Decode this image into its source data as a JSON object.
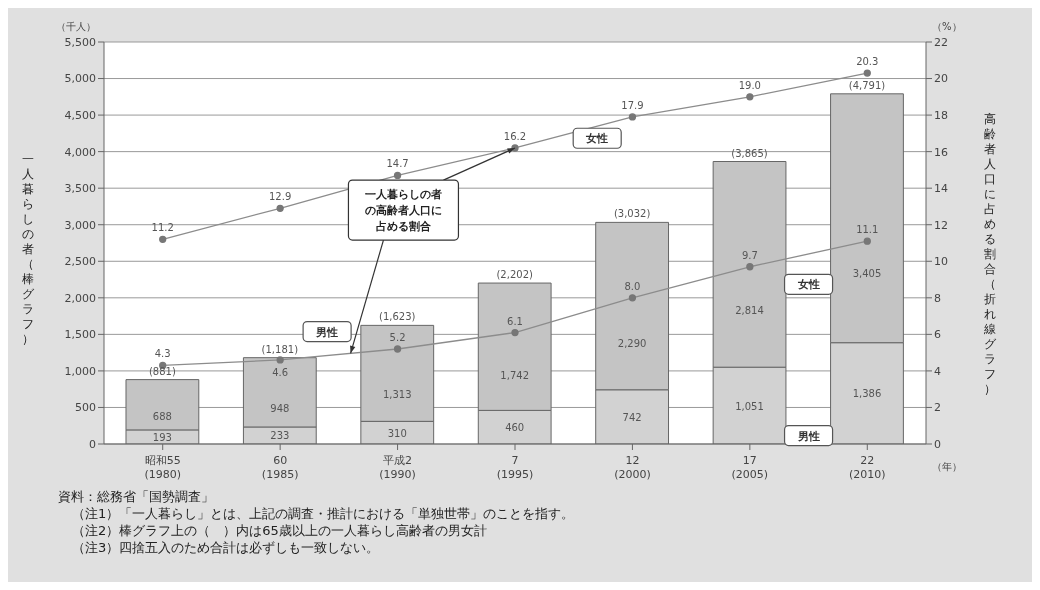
{
  "chart_data": {
    "type": "bar",
    "stacked": true,
    "ylabel": "一人暮らしの者（棒グラフ）",
    "y2label": "高齢者人口に占める割合（折れ線グラフ）",
    "categories": [
      "昭和55\n(1980)",
      "60\n(1985)",
      "平成2\n(1990)",
      "7\n(1995)",
      "12\n(2000)",
      "17\n(2005)",
      "22\n(2010)"
    ],
    "series": [
      {
        "name": "男性",
        "color": "#d2d2d2",
        "values": [
          193,
          233,
          310,
          460,
          742,
          1051,
          1386
        ],
        "value_labels": [
          "193",
          "233",
          "310",
          "460",
          "742",
          "1,051",
          "1,386"
        ]
      },
      {
        "name": "女性",
        "color": "#c4c4c4",
        "values": [
          688,
          948,
          1313,
          1742,
          2290,
          2814,
          3405
        ],
        "value_labels": [
          "688",
          "948",
          "1,313",
          "1,742",
          "2,290",
          "2,814",
          "3,405"
        ]
      },
      {
        "name": "男性",
        "type": "line",
        "axis": "y2",
        "color": "#8c8c8c",
        "values": [
          4.3,
          4.6,
          5.2,
          6.1,
          8.0,
          9.7,
          11.1
        ],
        "value_labels": [
          "4.3",
          "4.6",
          "5.2",
          "6.1",
          "8.0",
          "9.7",
          "11.1"
        ]
      },
      {
        "name": "女性",
        "type": "line",
        "axis": "y2",
        "color": "#8c8c8c",
        "values": [
          11.2,
          12.9,
          14.7,
          16.2,
          17.9,
          19.0,
          20.3
        ],
        "value_labels": [
          "11.2",
          "12.9",
          "14.7",
          "16.2",
          "17.9",
          "19.0",
          "20.3"
        ]
      }
    ],
    "totals": [
      "(881)",
      "(1,181)",
      "(1,623)",
      "(2,202)",
      "(3,032)",
      "(3,865)",
      "(4,791)"
    ],
    "ylim": [
      0,
      5500
    ],
    "yticks": [
      0,
      500,
      {
        "value": 1000,
        "label": "1,000"
      },
      {
        "value": 1500,
        "label": "1,500"
      },
      {
        "value": 2000,
        "label": "2,000"
      },
      {
        "value": 2500,
        "label": "2,500"
      },
      {
        "value": 3000,
        "label": "3,000"
      },
      {
        "value": 3500,
        "label": "3,500"
      },
      {
        "value": 4000,
        "label": "4,000"
      },
      {
        "value": 4500,
        "label": "4,500"
      },
      {
        "value": 5000,
        "label": "5,000"
      },
      {
        "value": 5500,
        "label": "5,500"
      }
    ],
    "y2lim": [
      0,
      22
    ],
    "y2ticks": [
      0,
      2,
      4,
      6,
      8,
      10,
      12,
      14,
      16,
      18,
      20,
      22
    ],
    "grid": "y",
    "legend": false,
    "marker": "circle",
    "annotations": [
      "（千人）",
      "（%）",
      "（年）",
      {
        "text": "一人暮らしの者の高齢者人口に占める割合",
        "x": "7\n(1995)",
        "y": 4050
      },
      "資料：総務省「国勢調査」",
      "（注1）「一人暮らし」とは、上記の調査・推計における「単独世帯」のことを指す。",
      "（注2）棒グラフ上の（　）内は65歳以上の一人暮らし高齢者の男女計",
      "（注3）四捨五入のため合計は必ずしも一致しない。"
    ]
  }
}
